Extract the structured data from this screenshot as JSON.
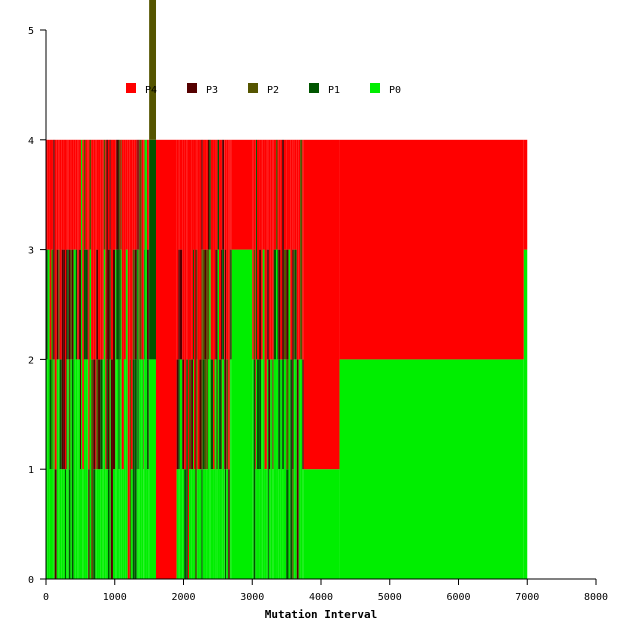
{
  "chart_data": {
    "type": "area",
    "title": "",
    "xlabel": "Mutation Interval",
    "ylabel": "",
    "xlim": [
      0,
      8000
    ],
    "ylim": [
      0,
      5
    ],
    "x_ticks": [
      0,
      1000,
      2000,
      3000,
      4000,
      5000,
      6000,
      7000,
      8000
    ],
    "y_ticks": [
      0,
      1,
      2,
      3,
      4,
      5
    ],
    "grid": false,
    "legend_position": "top-left",
    "series": [
      {
        "name": "P4",
        "color": "#ff0000"
      },
      {
        "name": "P3",
        "color": "#550000"
      },
      {
        "name": "P2",
        "color": "#555500"
      },
      {
        "name": "P1",
        "color": "#005500"
      },
      {
        "name": "P0",
        "color": "#00ee00"
      }
    ],
    "segments": [
      {
        "x_start": 0,
        "x_end": 1500,
        "state": "rapid fluctuation across P0-P4 (0 to 4)"
      },
      {
        "x_start": 1500,
        "x_end": 1600,
        "y": [
          2,
          2,
          2,
          2,
          2
        ]
      },
      {
        "x_start": 1600,
        "x_end": 1900,
        "y": [
          4,
          0,
          0,
          0,
          0
        ]
      },
      {
        "x_start": 1900,
        "x_end": 2700,
        "state": "rapid fluctuation across P0-P4 (0 to 4)"
      },
      {
        "x_start": 2700,
        "x_end": 2800,
        "y": [
          1,
          0,
          0,
          0,
          3
        ]
      },
      {
        "x_start": 2800,
        "x_end": 3000,
        "y": [
          1,
          0,
          0,
          0,
          3
        ]
      },
      {
        "x_start": 3000,
        "x_end": 3750,
        "state": "rapid fluctuation across P0-P4 (0 to 4)"
      },
      {
        "x_start": 3750,
        "x_end": 4270,
        "y": [
          3,
          0,
          0,
          0,
          1
        ]
      },
      {
        "x_start": 4270,
        "x_end": 6950,
        "y": [
          2,
          0,
          0,
          0,
          2
        ]
      },
      {
        "x_start": 6950,
        "x_end": 7000,
        "y": [
          1,
          0,
          0,
          0,
          3
        ]
      }
    ]
  }
}
